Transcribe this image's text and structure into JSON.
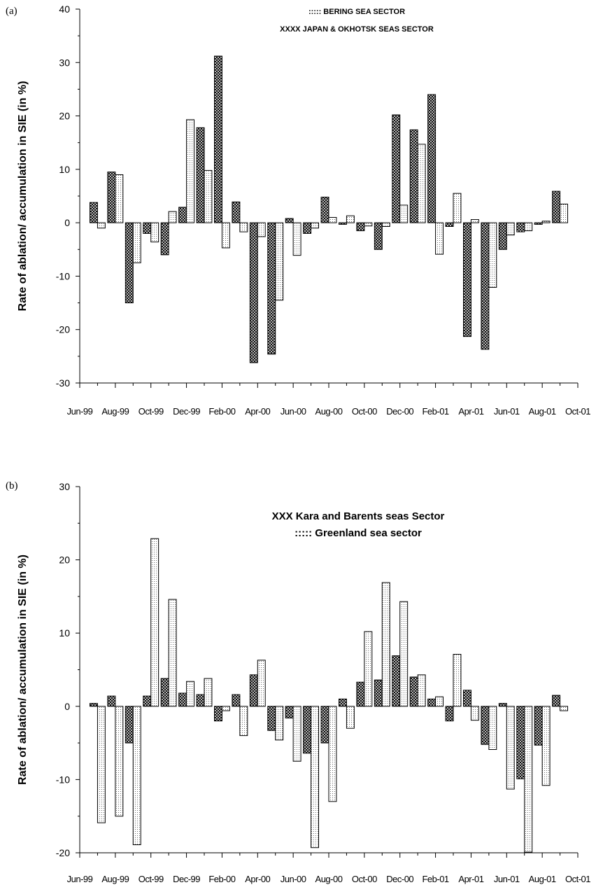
{
  "chart_data": [
    {
      "type": "bar",
      "panel_label": "(a)",
      "ylabel": "Rate of ablation/ accumulation in SIE (in %)",
      "ylim": [
        -30,
        40
      ],
      "yticks": [
        -30,
        -20,
        -10,
        0,
        10,
        20,
        30,
        40
      ],
      "xtick_labels": [
        "Jun-99",
        "Aug-99",
        "Oct-99",
        "Dec-99",
        "Feb-00",
        "Apr-00",
        "Jun-00",
        "Aug-00",
        "Oct-00",
        "Dec-00",
        "Feb-01",
        "Apr-01",
        "Jun-01",
        "Aug-01",
        "Oct-01"
      ],
      "legend": {
        "placement": "top-center",
        "entries": [
          {
            "text": "::::: BERING SEA SECTOR",
            "series": 1
          },
          {
            "text": "XXXX JAPAN & OKHOTSK SEAS SECTOR",
            "series": 0
          }
        ]
      },
      "series": [
        {
          "name": "JAPAN & OKHOTSK SEAS SECTOR",
          "pattern": "crosshatch",
          "values": [
            3.8,
            9.5,
            -15,
            -2,
            -6,
            2.9,
            17.8,
            31.2,
            3.9,
            -26.2,
            -24.6,
            0.8,
            -2,
            4.8,
            -0.3,
            -1.5,
            -5,
            20.2,
            17.4,
            24,
            -0.7,
            -21.3,
            -23.7,
            -5,
            -1.7,
            -0.3,
            5.9
          ]
        },
        {
          "name": "BERING SEA SECTOR",
          "pattern": "dots",
          "values": [
            -1,
            9,
            -7.5,
            -3.6,
            2.1,
            19.3,
            9.8,
            -4.7,
            -1.7,
            -2.6,
            -14.5,
            -6.1,
            -1,
            1,
            1.3,
            -0.6,
            -0.7,
            3.3,
            14.7,
            -5.9,
            5.5,
            0.6,
            -12.1,
            -2.3,
            -1.5,
            0.3,
            3.5
          ]
        }
      ]
    },
    {
      "type": "bar",
      "panel_label": "(b)",
      "ylabel": "Rate of ablation/ accumulation in SIE (in %)",
      "ylim": [
        -20,
        30
      ],
      "yticks": [
        -20,
        -10,
        0,
        10,
        20,
        30
      ],
      "xtick_labels": [
        "Jun-99",
        "Aug-99",
        "Oct-99",
        "Dec-99",
        "Feb-00",
        "Apr-00",
        "Jun-00",
        "Aug-00",
        "Oct-00",
        "Dec-00",
        "Feb-01",
        "Apr-01",
        "Jun-01",
        "Aug-01",
        "Oct-01"
      ],
      "legend": {
        "placement": "top-center",
        "entries": [
          {
            "text": "XXX Kara and Barents seas Sector",
            "series": 0
          },
          {
            "text": "::::: Greenland sea sector",
            "series": 1
          }
        ]
      },
      "series": [
        {
          "name": "Kara and Barents seas Sector",
          "pattern": "crosshatch",
          "values": [
            0.4,
            1.4,
            -5,
            1.4,
            3.8,
            1.8,
            1.6,
            -2,
            1.6,
            4.3,
            -3.3,
            -1.6,
            -6.4,
            -5,
            1,
            3.3,
            3.6,
            6.9,
            4,
            1,
            -2,
            2.2,
            -5.2,
            0.4,
            -9.9,
            -5.3,
            1.5
          ]
        },
        {
          "name": "Greenland sea sector",
          "pattern": "dots",
          "values": [
            -15.9,
            -15,
            -18.9,
            22.9,
            14.6,
            3.4,
            3.8,
            -0.6,
            -4,
            6.3,
            -4.6,
            -7.5,
            -19.3,
            -13,
            -3,
            10.2,
            16.9,
            14.3,
            4.3,
            1.3,
            7.1,
            -1.9,
            -5.9,
            -11.3,
            -19.9,
            -10.8,
            -0.6
          ]
        }
      ]
    }
  ]
}
